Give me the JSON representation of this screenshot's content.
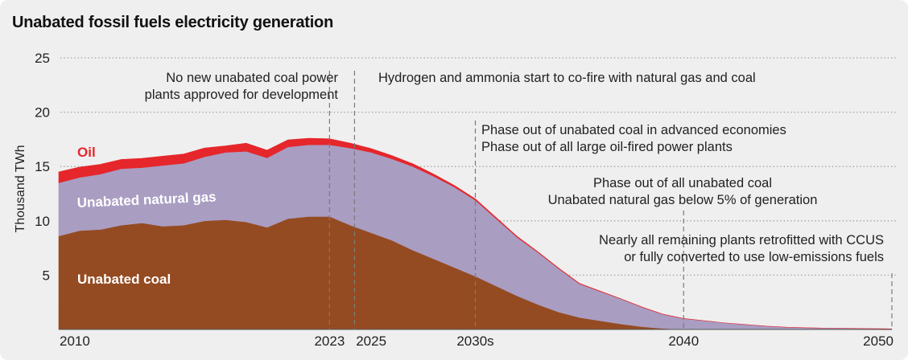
{
  "title": "Unabated fossil fuels electricity generation",
  "chart_data": {
    "type": "area",
    "stacked": true,
    "title": "Unabated fossil fuels electricity generation",
    "ylabel": "Thousand TWh",
    "xlabel": "",
    "ylim": [
      0,
      25
    ],
    "xlim": [
      2010,
      2050
    ],
    "grid": "horizontal dotted",
    "y_ticks": [
      5,
      10,
      15,
      20,
      25
    ],
    "x_ticks": [
      {
        "value": 2010,
        "label": "2010"
      },
      {
        "value": 2023,
        "label": "2023"
      },
      {
        "value": 2025,
        "label": "2025"
      },
      {
        "value": 2030,
        "label": "2030s"
      },
      {
        "value": 2040,
        "label": "2040"
      },
      {
        "value": 2050,
        "label": "2050"
      }
    ],
    "x": [
      2010,
      2011,
      2012,
      2013,
      2014,
      2015,
      2016,
      2017,
      2018,
      2019,
      2020,
      2021,
      2022,
      2023,
      2024,
      2025,
      2026,
      2027,
      2028,
      2029,
      2030,
      2031,
      2032,
      2033,
      2034,
      2035,
      2036,
      2037,
      2038,
      2039,
      2040,
      2041,
      2042,
      2043,
      2044,
      2045,
      2046,
      2047,
      2048,
      2049,
      2050
    ],
    "series": [
      {
        "name": "Unabated coal",
        "color": "#954b21",
        "label_color": "#ffffff",
        "values": [
          8.6,
          9.1,
          9.2,
          9.6,
          9.8,
          9.5,
          9.6,
          10.0,
          10.1,
          9.9,
          9.4,
          10.2,
          10.4,
          10.4,
          9.6,
          8.9,
          8.2,
          7.3,
          6.5,
          5.7,
          4.9,
          4.0,
          3.1,
          2.3,
          1.6,
          1.1,
          0.8,
          0.5,
          0.25,
          0.1,
          0.0,
          0,
          0,
          0,
          0,
          0,
          0,
          0,
          0,
          0,
          0
        ]
      },
      {
        "name": "Unabated natural gas",
        "color": "#a99dc2",
        "label_color": "#ffffff",
        "values": [
          4.9,
          4.9,
          5.1,
          5.2,
          5.1,
          5.6,
          5.7,
          5.9,
          6.2,
          6.5,
          6.4,
          6.6,
          6.6,
          6.6,
          7.1,
          7.4,
          7.5,
          7.7,
          7.6,
          7.4,
          7.0,
          6.2,
          5.4,
          4.8,
          4.0,
          3.1,
          2.7,
          2.3,
          1.8,
          1.3,
          1.0,
          0.8,
          0.6,
          0.45,
          0.3,
          0.2,
          0.15,
          0.12,
          0.1,
          0.08,
          0.05
        ]
      },
      {
        "name": "Oil",
        "color": "#e5262b",
        "label_color": "#e5262b",
        "values": [
          1.0,
          0.95,
          0.9,
          0.85,
          0.85,
          0.85,
          0.85,
          0.8,
          0.6,
          0.75,
          0.7,
          0.65,
          0.6,
          0.55,
          0.45,
          0.35,
          0.3,
          0.25,
          0.2,
          0.15,
          0.12,
          0.1,
          0.08,
          0.06,
          0.05,
          0.04,
          0.03,
          0.02,
          0.02,
          0.01,
          0.01,
          0,
          0,
          0,
          0,
          0,
          0,
          0,
          0,
          0,
          0
        ]
      }
    ],
    "annotations": [
      {
        "x": 2023,
        "lines": [
          "No new unabated coal power",
          "plants approved for development"
        ],
        "align": "right"
      },
      {
        "x": 2024.2,
        "lines": [
          "Hydrogen and ammonia start to co-fire with natural gas and coal"
        ],
        "align": "left"
      },
      {
        "x": 2030,
        "lines": [
          "Phase out of unabated coal in advanced economies",
          "Phase out of all large oil-fired power plants"
        ],
        "align": "left"
      },
      {
        "x": 2040,
        "lines": [
          "Phase out of all unabated coal",
          "Unabated natural gas below 5% of generation"
        ],
        "align": "center"
      },
      {
        "x": 2050,
        "lines": [
          "Nearly all remaining plants retrofitted with CCUS",
          "or fully converted to use low-emissions fuels"
        ],
        "align": "right"
      }
    ]
  }
}
